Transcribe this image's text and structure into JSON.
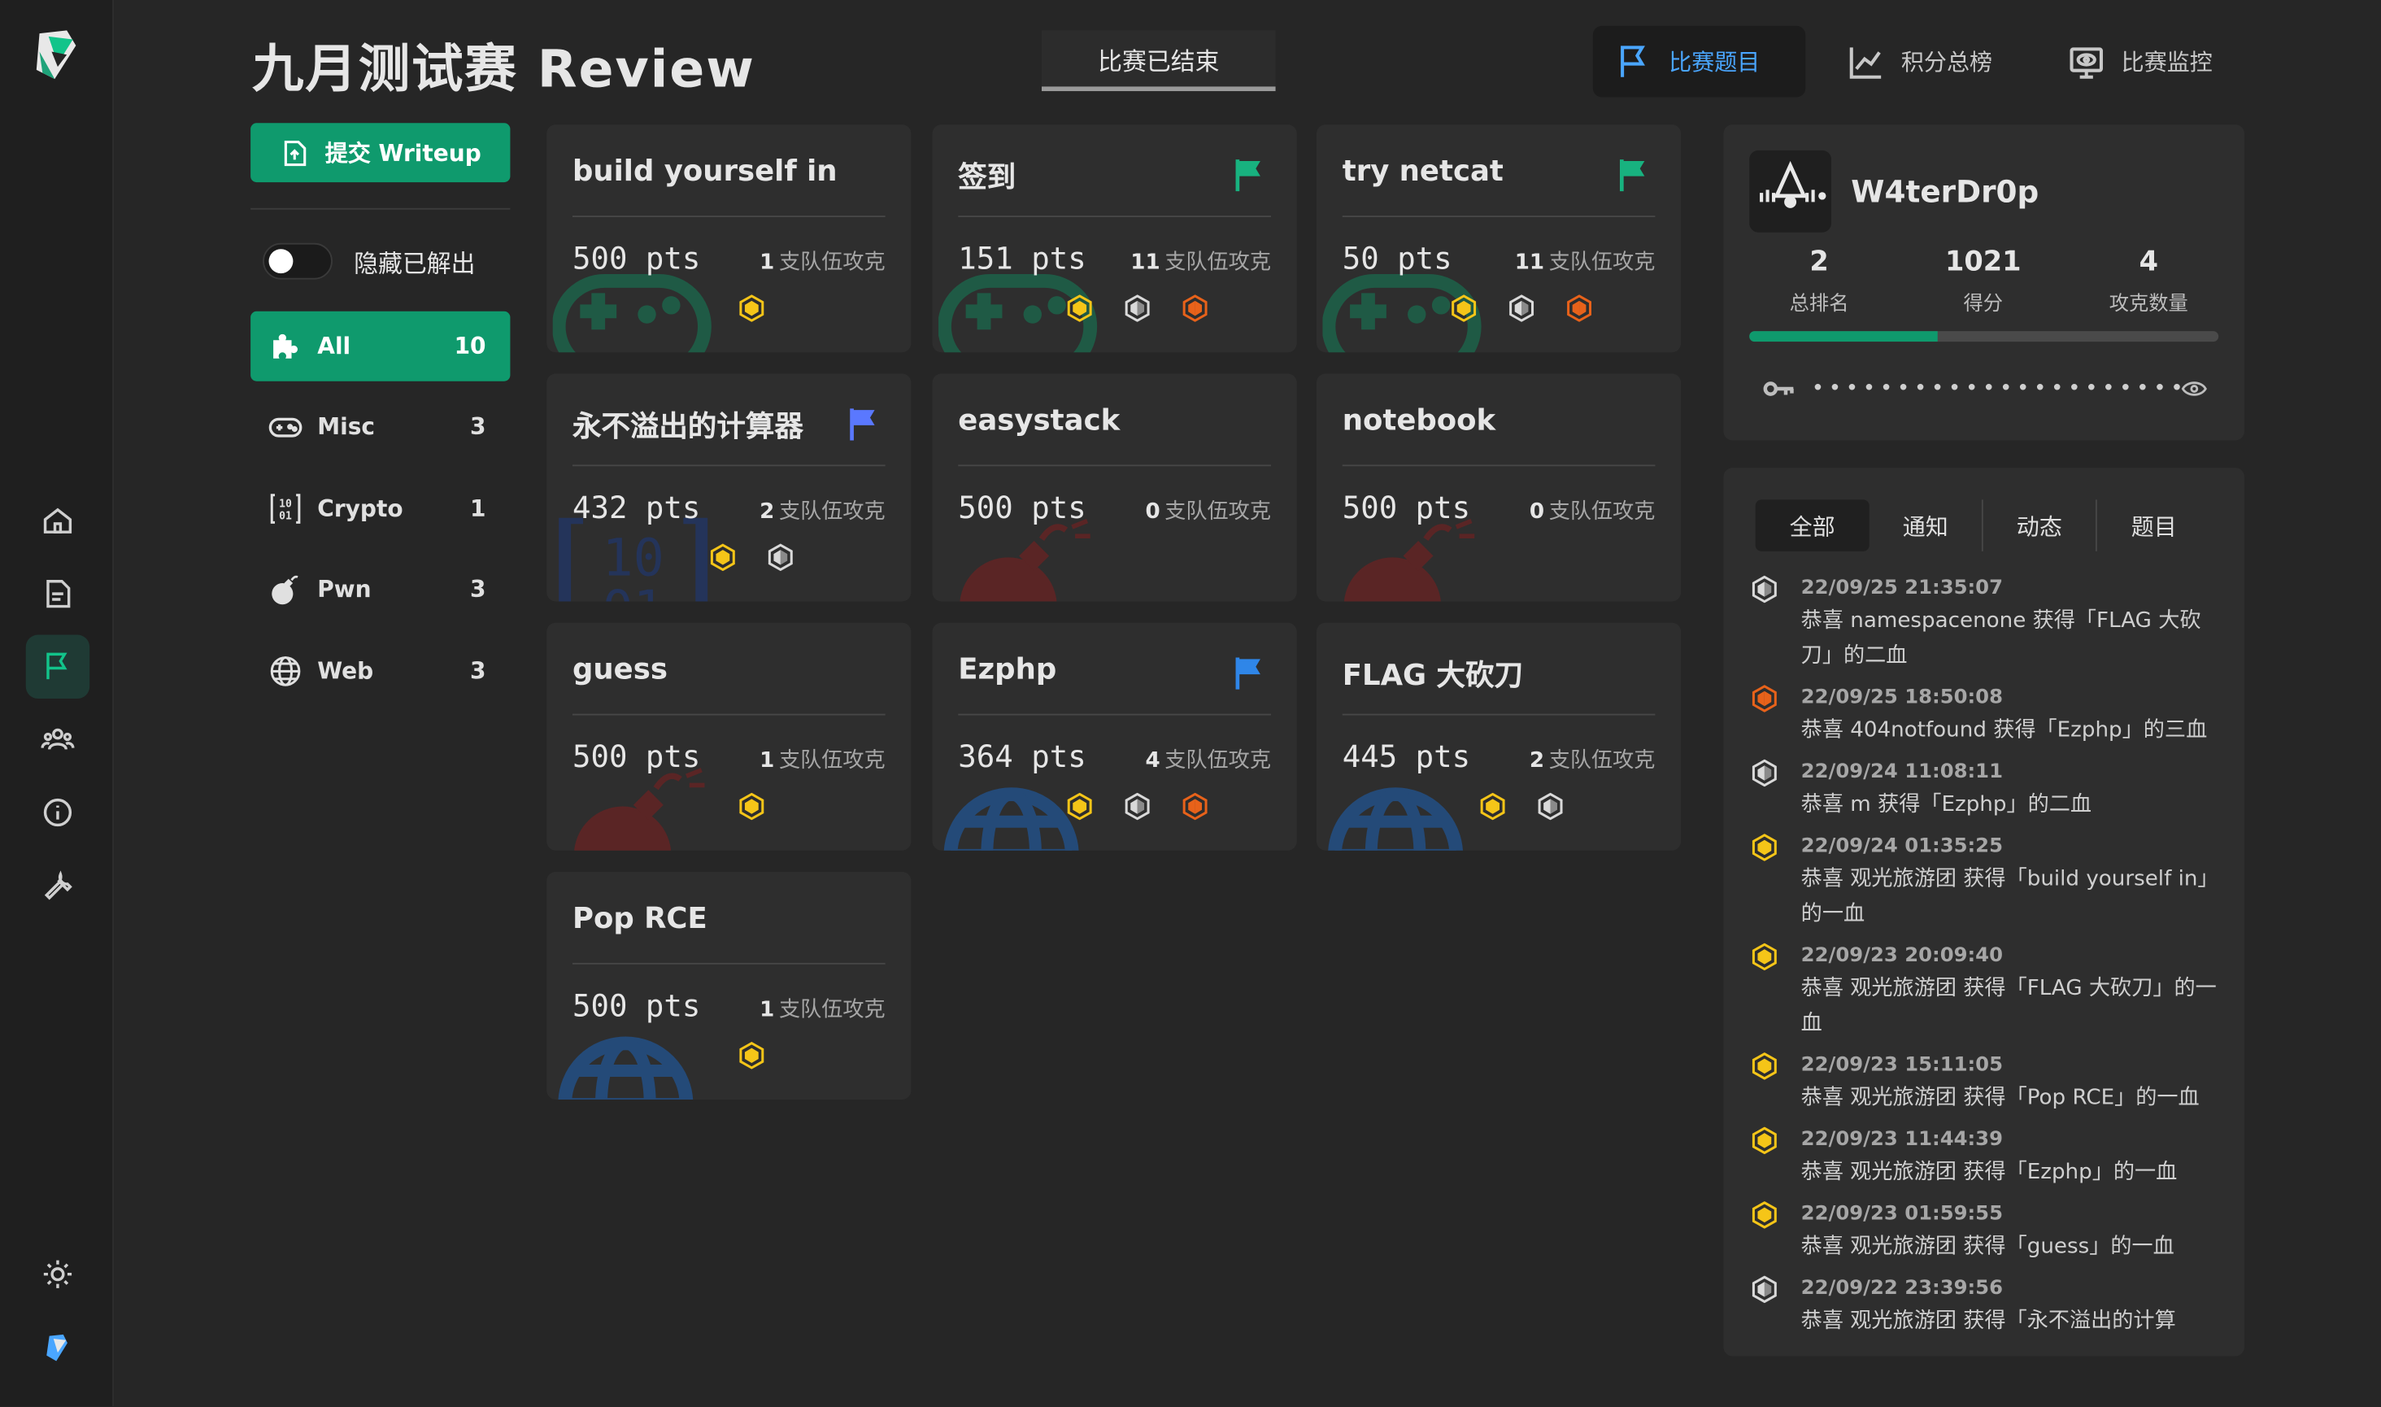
{
  "page": {
    "title": "九月测试赛 Review",
    "status": "比赛已结束"
  },
  "nav": {
    "tabs": [
      {
        "label": "比赛题目",
        "icon": "flag-icon",
        "active": true
      },
      {
        "label": "积分总榜",
        "icon": "chart-line-icon",
        "active": false
      },
      {
        "label": "比赛监控",
        "icon": "monitor-eye-icon",
        "active": false
      }
    ]
  },
  "sidebar": {
    "writeup_label": "提交 Writeup",
    "hide_solved_label": "隐藏已解出",
    "hide_solved_on": false,
    "categories": [
      {
        "label": "All",
        "count": "10",
        "icon": "puzzle-icon",
        "active": true
      },
      {
        "label": "Misc",
        "count": "3",
        "icon": "gamepad-icon",
        "active": false
      },
      {
        "label": "Crypto",
        "count": "1",
        "icon": "binary-icon",
        "active": false
      },
      {
        "label": "Pwn",
        "count": "3",
        "icon": "bomb-icon",
        "active": false
      },
      {
        "label": "Web",
        "count": "3",
        "icon": "globe-icon",
        "active": false
      }
    ]
  },
  "challenges": [
    {
      "title": "build yourself in",
      "pts": "500 pts",
      "solves": "1",
      "solves_label": "支队伍攻克",
      "category": "Misc",
      "flag": "",
      "bloods": [
        "gold"
      ]
    },
    {
      "title": "签到",
      "pts": "151 pts",
      "solves": "11",
      "solves_label": "支队伍攻克",
      "category": "Misc",
      "flag": "#18b27f",
      "bloods": [
        "gold",
        "silver",
        "bronze"
      ]
    },
    {
      "title": "try netcat",
      "pts": "50 pts",
      "solves": "11",
      "solves_label": "支队伍攻克",
      "category": "Misc",
      "flag": "#18b27f",
      "bloods": [
        "gold",
        "silver",
        "bronze"
      ]
    },
    {
      "title": "永不溢出的计算器",
      "pts": "432 pts",
      "solves": "2",
      "solves_label": "支队伍攻克",
      "category": "Crypto",
      "flag": "#5a78ff",
      "bloods": [
        "gold",
        "silver"
      ]
    },
    {
      "title": "easystack",
      "pts": "500 pts",
      "solves": "0",
      "solves_label": "支队伍攻克",
      "category": "Pwn",
      "flag": "",
      "bloods": []
    },
    {
      "title": "notebook",
      "pts": "500 pts",
      "solves": "0",
      "solves_label": "支队伍攻克",
      "category": "Pwn",
      "flag": "",
      "bloods": []
    },
    {
      "title": "guess",
      "pts": "500 pts",
      "solves": "1",
      "solves_label": "支队伍攻克",
      "category": "Pwn",
      "flag": "",
      "bloods": [
        "gold"
      ]
    },
    {
      "title": "Ezphp",
      "pts": "364 pts",
      "solves": "4",
      "solves_label": "支队伍攻克",
      "category": "Web",
      "flag": "#2f86e8",
      "bloods": [
        "gold",
        "silver",
        "bronze"
      ]
    },
    {
      "title": "FLAG 大砍刀",
      "pts": "445 pts",
      "solves": "2",
      "solves_label": "支队伍攻克",
      "category": "Web",
      "flag": "",
      "bloods": [
        "gold",
        "silver"
      ]
    },
    {
      "title": "Pop RCE",
      "pts": "500 pts",
      "solves": "1",
      "solves_label": "支队伍攻克",
      "category": "Web",
      "flag": "",
      "bloods": [
        "gold"
      ]
    }
  ],
  "team": {
    "name": "W4terDr0p",
    "rank": "2",
    "rank_label": "总排名",
    "score": "1021",
    "score_label": "得分",
    "solved": "4",
    "solved_label": "攻克数量",
    "progress": 0.4,
    "token_mask": "••••••••••••••••••••••••••••••"
  },
  "notices": {
    "tabs": [
      "全部",
      "通知",
      "动态",
      "题目"
    ],
    "active_tab": "全部",
    "items": [
      {
        "time": "22/09/25 21:35:07",
        "text": "恭喜 namespacenone 获得「FLAG 大砍刀」的二血",
        "blood": "silver"
      },
      {
        "time": "22/09/25 18:50:08",
        "text": "恭喜 404notfound 获得「Ezphp」的三血",
        "blood": "bronze"
      },
      {
        "time": "22/09/24 11:08:11",
        "text": "恭喜 m 获得「Ezphp」的二血",
        "blood": "silver"
      },
      {
        "time": "22/09/24 01:35:25",
        "text": "恭喜 观光旅游团 获得「build yourself in」的一血",
        "blood": "gold"
      },
      {
        "time": "22/09/23 20:09:40",
        "text": "恭喜 观光旅游团 获得「FLAG 大砍刀」的一血",
        "blood": "gold"
      },
      {
        "time": "22/09/23 15:11:05",
        "text": "恭喜 观光旅游团 获得「Pop RCE」的一血",
        "blood": "gold"
      },
      {
        "time": "22/09/23 11:44:39",
        "text": "恭喜 观光旅游团 获得「Ezphp」的一血",
        "blood": "gold"
      },
      {
        "time": "22/09/23 01:59:55",
        "text": "恭喜 观光旅游团 获得「guess」的一血",
        "blood": "gold"
      },
      {
        "time": "22/09/22 23:39:56",
        "text": "恭喜 观光旅游团 获得「永不溢出的计算",
        "blood": "silver"
      }
    ]
  },
  "colors": {
    "accent": "#0f9a6d",
    "nav_active": "#4aa6ff",
    "gold": "#f5c518",
    "silver": "#d9d9d9",
    "bronze": "#e8621a"
  }
}
